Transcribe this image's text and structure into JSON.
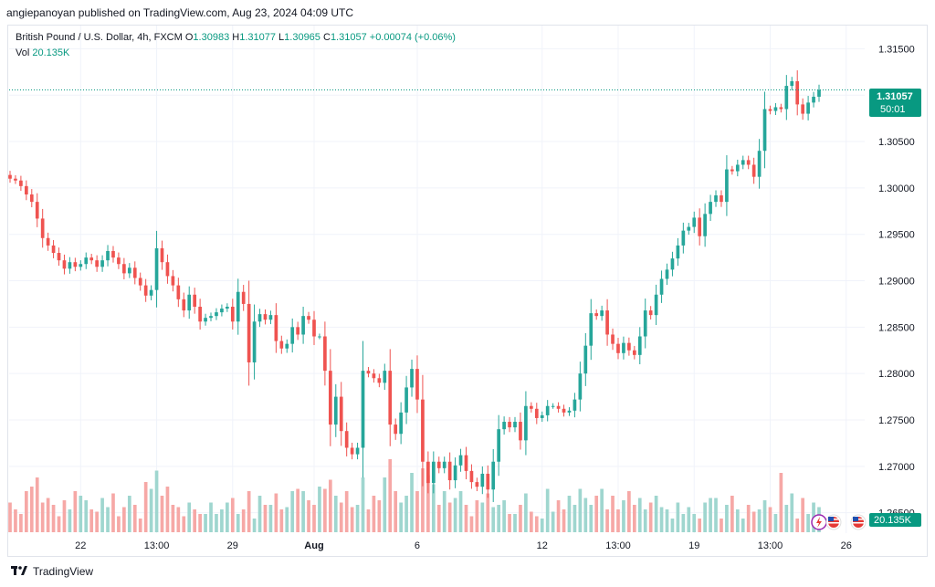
{
  "header": {
    "publisher": "angiepanoyan published on TradingView.com, Aug 23, 2024 04:09 UTC"
  },
  "legend": {
    "symbol": "British Pound / U.S. Dollar, 4h, FXCM",
    "open_label": "O",
    "open": "1.30983",
    "high_label": "H",
    "high": "1.31077",
    "low_label": "L",
    "low": "1.30965",
    "close_label": "C",
    "close": "1.31057",
    "change": "+0.00074 (+0.06%)",
    "vol_label": "Vol",
    "vol": "20.135K"
  },
  "price_badge": {
    "price": "1.31057",
    "countdown": "50:01"
  },
  "volume_badge": "20.135K",
  "footer": {
    "brand": "TradingView"
  },
  "colors": {
    "up": "#26a69a",
    "down": "#ef5350",
    "up_vol": "#9fd6cf",
    "down_vol": "#f6a8a6",
    "grid": "#f0f3fa",
    "badge": "#089981"
  },
  "chart_data": {
    "type": "candlestick",
    "title": "British Pound / U.S. Dollar, 4h, FXCM",
    "ylim": [
      1.2628,
      1.3175
    ],
    "y_ticks": [
      "1.31500",
      "1.31000",
      "1.30500",
      "1.30000",
      "1.29500",
      "1.29000",
      "1.28500",
      "1.28000",
      "1.27500",
      "1.27000",
      "1.26500"
    ],
    "y_tick_values": [
      1.315,
      1.31,
      1.305,
      1.3,
      1.295,
      1.29,
      1.285,
      1.28,
      1.275,
      1.27,
      1.265
    ],
    "x_tick_labels": [
      "22",
      "13:00",
      "29",
      "Aug",
      "6",
      "12",
      "13:00",
      "19",
      "13:00",
      "26"
    ],
    "x_tick_bar_index": [
      13,
      27,
      41,
      56,
      75,
      98,
      112,
      126,
      140,
      154
    ],
    "last_close": 1.31057,
    "closes": [
      1.301,
      1.3008,
      1.3002,
      1.2993,
      1.2985,
      1.2967,
      1.2946,
      1.2938,
      1.293,
      1.2922,
      1.2913,
      1.292,
      1.2915,
      1.2918,
      1.2925,
      1.2922,
      1.2915,
      1.2922,
      1.2932,
      1.2925,
      1.2918,
      1.2908,
      1.2914,
      1.2903,
      1.2895,
      1.2884,
      1.289,
      1.2935,
      1.292,
      1.2905,
      1.2895,
      1.288,
      1.2868,
      1.2885,
      1.2872,
      1.2856,
      1.286,
      1.2862,
      1.2866,
      1.287,
      1.2872,
      1.2856,
      1.2888,
      1.2875,
      1.2812,
      1.2856,
      1.2864,
      1.2858,
      1.2863,
      1.2835,
      1.2827,
      1.2832,
      1.285,
      1.2842,
      1.2862,
      1.2858,
      1.284,
      1.284,
      1.2803,
      1.2745,
      1.2775,
      1.2738,
      1.272,
      1.2713,
      1.272,
      1.2803,
      1.28,
      1.2795,
      1.279,
      1.2803,
      1.2745,
      1.2735,
      1.2758,
      1.2785,
      1.2805,
      1.2772,
      1.2705,
      1.2682,
      1.2705,
      1.2698,
      1.2705,
      1.2685,
      1.2701,
      1.2712,
      1.2695,
      1.2683,
      1.2678,
      1.2692,
      1.2675,
      1.2705,
      1.274,
      1.2748,
      1.2742,
      1.2748,
      1.2728,
      1.2765,
      1.2762,
      1.2752,
      1.2755,
      1.2765,
      1.2765,
      1.2762,
      1.2758,
      1.276,
      1.2772,
      1.28,
      1.283,
      1.2865,
      1.2862,
      1.2868,
      1.2842,
      1.2832,
      1.2822,
      1.2833,
      1.2825,
      1.282,
      1.284,
      1.2868,
      1.2863,
      1.2885,
      1.2902,
      1.2912,
      1.2924,
      1.2938,
      1.2954,
      1.2958,
      1.2968,
      1.2948,
      1.2972,
      1.2985,
      1.2992,
      1.2985,
      1.302,
      1.3018,
      1.3025,
      1.303,
      1.3025,
      1.3012,
      1.304,
      1.3085,
      1.3083,
      1.3087,
      1.3085,
      1.311,
      1.3115,
      1.309,
      1.308,
      1.3092,
      1.30983,
      1.31057
    ],
    "volumes": [
      6.5,
      5,
      4,
      9,
      10,
      12,
      6.5,
      7.5,
      6,
      3.5,
      7,
      5,
      9,
      8,
      7,
      5,
      4.5,
      7.5,
      5.5,
      8.5,
      3.5,
      5.5,
      8,
      6,
      3,
      11,
      9.5,
      13.5,
      8,
      10,
      6,
      5.5,
      3.5,
      6.5,
      5,
      4,
      4,
      6.5,
      4,
      5,
      6.5,
      7.5,
      4,
      5,
      9,
      3,
      8,
      6,
      6,
      8.5,
      5,
      5.5,
      9,
      9.5,
      9,
      7,
      6,
      10,
      9.5,
      11.5,
      8,
      6.5,
      9,
      5.5,
      6,
      12,
      5,
      8,
      7,
      12,
      16,
      9,
      6.5,
      8,
      13,
      9,
      14,
      12.5,
      10.5,
      6,
      9,
      6.5,
      7.5,
      9,
      6,
      3.5,
      7,
      6.5,
      8.5,
      5.5,
      6,
      7,
      4,
      4,
      6,
      8.5,
      4.5,
      3.5,
      3,
      9.5,
      4.5,
      7,
      5,
      8,
      6,
      9.5,
      7.5,
      6,
      8,
      9.5,
      5,
      8,
      5,
      7,
      9,
      6,
      7.5,
      5,
      6.5,
      8,
      5.5,
      5,
      3,
      6.5,
      4,
      5.5,
      4,
      3,
      6.5,
      7.5,
      7.5,
      3,
      6,
      8,
      5,
      3,
      6,
      4.5,
      5,
      7,
      5.5,
      4,
      13,
      6,
      8.5,
      3,
      7.5,
      4,
      6.5,
      5.5
    ]
  }
}
